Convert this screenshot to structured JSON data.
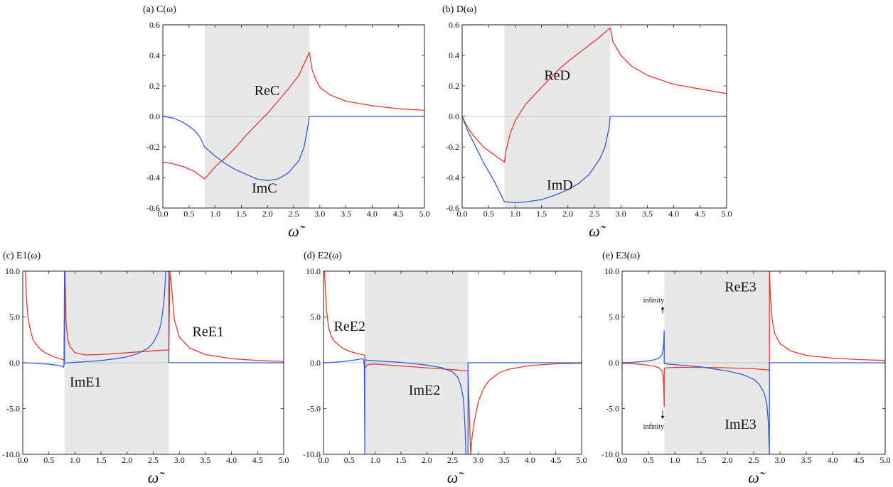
{
  "chart_data": [
    {
      "type": "line",
      "panel": "a",
      "title": "(a) C(ω)",
      "xlabel": "ω̃",
      "xlim": [
        0,
        5
      ],
      "ylim": [
        -0.6,
        0.6
      ],
      "xticks": [
        0,
        0.5,
        1,
        1.5,
        2,
        2.5,
        3,
        3.5,
        4,
        4.5,
        5
      ],
      "xtick_labels": [
        "0.0",
        "0.5",
        "1.0",
        "1.5",
        "2.0",
        "2.5",
        "3.0",
        "3.5",
        "4.0",
        "4.5",
        "5.0"
      ],
      "yticks": [
        -0.6,
        -0.4,
        -0.2,
        0,
        0.2,
        0.4,
        0.6
      ],
      "ytick_labels": [
        "-0.6",
        "-0.4",
        "-0.2",
        "0.0",
        "0.2",
        "0.4",
        "0.6"
      ],
      "shaded_band": [
        0.8,
        2.8
      ],
      "grid": false,
      "colors": {
        "re": "#e8392b",
        "im": "#2e5fe0",
        "band": "#e8e8e8"
      },
      "series": [
        {
          "name": "ReC",
          "color": "re",
          "x": [
            0,
            0.2,
            0.4,
            0.6,
            0.8,
            0.9,
            1,
            1.2,
            1.4,
            1.6,
            1.8,
            2,
            2.2,
            2.4,
            2.6,
            2.8,
            2.85,
            2.9,
            3,
            3.2,
            3.5,
            4,
            4.5,
            5
          ],
          "y": [
            -0.3,
            -0.31,
            -0.33,
            -0.36,
            -0.41,
            -0.37,
            -0.33,
            -0.27,
            -0.2,
            -0.12,
            -0.05,
            0.02,
            0.1,
            0.18,
            0.27,
            0.42,
            0.31,
            0.26,
            0.19,
            0.14,
            0.1,
            0.07,
            0.05,
            0.04
          ]
        },
        {
          "name": "ImC",
          "color": "im",
          "x": [
            0,
            0.2,
            0.4,
            0.6,
            0.7,
            0.8,
            1,
            1.2,
            1.4,
            1.6,
            1.8,
            2,
            2.2,
            2.4,
            2.6,
            2.7,
            2.78,
            2.8,
            3,
            4,
            5
          ],
          "y": [
            0,
            -0.01,
            -0.04,
            -0.09,
            -0.13,
            -0.2,
            -0.26,
            -0.31,
            -0.35,
            -0.38,
            -0.41,
            -0.42,
            -0.41,
            -0.37,
            -0.29,
            -0.2,
            -0.05,
            0,
            0,
            0,
            0
          ]
        }
      ],
      "annotations": [
        {
          "text": "ReC",
          "x": 1.75,
          "y": 0.14
        },
        {
          "text": "ImC",
          "x": 1.7,
          "y": -0.5
        }
      ]
    },
    {
      "type": "line",
      "panel": "b",
      "title": "(b) D(ω)",
      "xlabel": "ω̃",
      "xlim": [
        0,
        5
      ],
      "ylim": [
        -0.6,
        0.6
      ],
      "xticks": [
        0,
        0.5,
        1,
        1.5,
        2,
        2.5,
        3,
        3.5,
        4,
        4.5,
        5
      ],
      "xtick_labels": [
        "0.0",
        "0.5",
        "1.0",
        "1.5",
        "2.0",
        "2.5",
        "3.0",
        "3.5",
        "4.0",
        "4.5",
        "5.0"
      ],
      "yticks": [
        -0.6,
        -0.4,
        -0.2,
        0,
        0.2,
        0.4,
        0.6
      ],
      "ytick_labels": [
        "-0.6",
        "-0.4",
        "-0.2",
        "0.0",
        "0.2",
        "0.4",
        "0.6"
      ],
      "shaded_band": [
        0.8,
        2.8
      ],
      "grid": false,
      "colors": {
        "re": "#e8392b",
        "im": "#2e5fe0",
        "band": "#e8e8e8"
      },
      "series": [
        {
          "name": "ReD",
          "color": "re",
          "x": [
            0,
            0.1,
            0.2,
            0.4,
            0.6,
            0.8,
            0.82,
            0.9,
            1,
            1.2,
            1.5,
            1.8,
            2,
            2.3,
            2.6,
            2.8,
            2.85,
            3,
            3.2,
            3.5,
            4,
            4.5,
            5
          ],
          "y": [
            0,
            -0.07,
            -0.12,
            -0.2,
            -0.25,
            -0.3,
            -0.24,
            -0.12,
            -0.03,
            0.08,
            0.19,
            0.3,
            0.36,
            0.44,
            0.52,
            0.58,
            0.49,
            0.4,
            0.33,
            0.27,
            0.21,
            0.18,
            0.15
          ]
        },
        {
          "name": "ImD",
          "color": "im",
          "x": [
            0,
            0.1,
            0.2,
            0.4,
            0.6,
            0.8,
            0.81,
            1,
            1.2,
            1.5,
            1.8,
            2,
            2.2,
            2.4,
            2.6,
            2.7,
            2.78,
            2.8,
            3,
            4,
            5
          ],
          "y": [
            0,
            -0.09,
            -0.16,
            -0.3,
            -0.42,
            -0.56,
            -0.56,
            -0.565,
            -0.56,
            -0.545,
            -0.51,
            -0.48,
            -0.44,
            -0.38,
            -0.28,
            -0.2,
            -0.07,
            0,
            0,
            0,
            0
          ]
        }
      ],
      "annotations": [
        {
          "text": "ReD",
          "x": 1.55,
          "y": 0.24
        },
        {
          "text": "ImD",
          "x": 1.6,
          "y": -0.48
        }
      ]
    },
    {
      "type": "line",
      "panel": "c",
      "title": "(c) E1(ω)",
      "xlabel": "ω̃",
      "xlim": [
        0,
        5
      ],
      "ylim": [
        -10,
        10
      ],
      "xticks": [
        0,
        0.5,
        1,
        1.5,
        2,
        2.5,
        3,
        3.5,
        4,
        4.5,
        5
      ],
      "xtick_labels": [
        "0.0",
        "0.5",
        "1.0",
        "1.5",
        "2.0",
        "2.5",
        "3.0",
        "3.5",
        "4.0",
        "4.5",
        "5.0"
      ],
      "yticks": [
        -10,
        -5,
        0,
        5,
        10
      ],
      "ytick_labels": [
        "-10.0",
        "-5.0",
        "0.0",
        "5.0",
        "10.0"
      ],
      "shaded_band": [
        0.8,
        2.8
      ],
      "grid": false,
      "colors": {
        "re": "#e8392b",
        "im": "#2e5fe0",
        "band": "#e8e8e8"
      },
      "series": [
        {
          "name": "ReE1",
          "color": "re",
          "x": [
            0.05,
            0.07,
            0.1,
            0.15,
            0.2,
            0.3,
            0.4,
            0.5,
            0.6,
            0.7,
            0.77,
            0.8,
            0.81,
            0.83,
            0.86,
            0.9,
            1,
            1.2,
            1.5,
            2,
            2.5,
            2.8,
            2.82,
            2.85,
            2.9,
            3,
            3.2,
            3.5,
            4,
            4.5,
            5
          ],
          "y": [
            10,
            7.2,
            5,
            3.4,
            2.5,
            1.7,
            1.2,
            0.9,
            0.65,
            0.45,
            0.35,
            0.3,
            10,
            4.5,
            2.6,
            1.8,
            1.1,
            0.85,
            0.9,
            1.1,
            1.3,
            1.4,
            10,
            8.5,
            4.8,
            2.8,
            1.6,
            0.9,
            0.45,
            0.25,
            0.15
          ]
        },
        {
          "name": "ImE1",
          "color": "im",
          "x": [
            0,
            0.2,
            0.4,
            0.6,
            0.7,
            0.76,
            0.78,
            0.79,
            0.8,
            0.8,
            0.9,
            1,
            1.2,
            1.5,
            1.8,
            2,
            2.2,
            2.4,
            2.5,
            2.6,
            2.65,
            2.7,
            2.72,
            2.74,
            2.8,
            2.8,
            3,
            4,
            5
          ],
          "y": [
            0,
            -0.05,
            -0.12,
            -0.22,
            -0.3,
            -0.4,
            -0.5,
            -0.3,
            10,
            -0.05,
            0,
            0.05,
            0.12,
            0.25,
            0.45,
            0.65,
            1,
            1.6,
            2.2,
            3.3,
            4.3,
            6.4,
            7.8,
            10,
            10,
            0,
            0,
            0,
            0
          ]
        }
      ],
      "annotations": [
        {
          "text": "ReE1",
          "x": 3.25,
          "y": 2.9
        },
        {
          "text": "ImE1",
          "x": 0.9,
          "y": -2.6
        }
      ]
    },
    {
      "type": "line",
      "panel": "d",
      "title": "(d) E2(ω)",
      "xlabel": "ω̃",
      "xlim": [
        0,
        5
      ],
      "ylim": [
        -10,
        10
      ],
      "xticks": [
        0,
        0.5,
        1,
        1.5,
        2,
        2.5,
        3,
        3.5,
        4,
        4.5,
        5
      ],
      "xtick_labels": [
        "0.0",
        "0.5",
        "1.0",
        "1.5",
        "2.0",
        "2.5",
        "3.0",
        "3.5",
        "4.0",
        "4.5",
        "5.0"
      ],
      "yticks": [
        -10,
        -5,
        0,
        5,
        10
      ],
      "ytick_labels": [
        "-10.0",
        "-5.0",
        "0.0",
        "5.0",
        "10.0"
      ],
      "shaded_band": [
        0.8,
        2.8
      ],
      "grid": false,
      "colors": {
        "re": "#e8392b",
        "im": "#2e5fe0",
        "band": "#e8e8e8"
      },
      "series": [
        {
          "name": "ReE2",
          "color": "re",
          "x": [
            0.02,
            0.04,
            0.06,
            0.1,
            0.15,
            0.2,
            0.3,
            0.4,
            0.5,
            0.6,
            0.7,
            0.78,
            0.8,
            0.8,
            0.85,
            1,
            1.5,
            2,
            2.5,
            2.8,
            2.8,
            2.85,
            2.88,
            2.92,
            3,
            3.1,
            3.2,
            3.4,
            3.6,
            4,
            4.5,
            5
          ],
          "y": [
            10,
            7.5,
            5.6,
            3.8,
            2.9,
            2.4,
            1.9,
            1.5,
            1.25,
            1.1,
            0.95,
            0.85,
            0.8,
            -0.6,
            -0.2,
            -0.15,
            -0.35,
            -0.55,
            -0.75,
            -0.9,
            -0.9,
            -10,
            -8,
            -6.5,
            -4.2,
            -2.8,
            -2,
            -1.1,
            -0.7,
            -0.3,
            -0.12,
            -0.05
          ]
        },
        {
          "name": "ImE2",
          "color": "im",
          "x": [
            0,
            0.2,
            0.4,
            0.6,
            0.7,
            0.76,
            0.78,
            0.79,
            0.8,
            0.8,
            0.81,
            0.85,
            1,
            1.5,
            2,
            2.3,
            2.5,
            2.6,
            2.65,
            2.7,
            2.72,
            2.74,
            2.76,
            2.8,
            2.8,
            3,
            4,
            5
          ],
          "y": [
            0,
            0.05,
            0.15,
            0.3,
            0.4,
            0.45,
            0.2,
            -0.3,
            -10,
            0.35,
            0.3,
            0.28,
            0.22,
            0.05,
            -0.25,
            -0.55,
            -1,
            -1.6,
            -2.3,
            -3.6,
            -4.8,
            -6.8,
            -10,
            -10,
            0,
            0,
            0,
            0
          ]
        }
      ],
      "annotations": [
        {
          "text": "ReE2",
          "x": 0.2,
          "y": 3.5
        },
        {
          "text": "ImE2",
          "x": 1.65,
          "y": -3.5
        }
      ]
    },
    {
      "type": "line",
      "panel": "e",
      "title": "(e) E3(ω)",
      "xlabel": "ω̃",
      "xlim": [
        0,
        5
      ],
      "ylim": [
        -10,
        10
      ],
      "xticks": [
        0,
        0.5,
        1,
        1.5,
        2,
        2.5,
        3,
        3.5,
        4,
        4.5,
        5
      ],
      "xtick_labels": [
        "0.0",
        "0.5",
        "1.0",
        "1.5",
        "2.0",
        "2.5",
        "3.0",
        "3.5",
        "4.0",
        "4.5",
        "5.0"
      ],
      "yticks": [
        -10,
        -5,
        0,
        5,
        10
      ],
      "ytick_labels": [
        "-10.0",
        "-5.0",
        "0.0",
        "5.0",
        "10.0"
      ],
      "shaded_band": [
        0.8,
        2.8
      ],
      "grid": false,
      "colors": {
        "re": "#e8392b",
        "im": "#2e5fe0",
        "band": "#e8e8e8"
      },
      "series": [
        {
          "name": "ReE3",
          "color": "re",
          "x": [
            0,
            0.2,
            0.4,
            0.6,
            0.7,
            0.76,
            0.78,
            0.79,
            0.8,
            0.8,
            0.81,
            0.85,
            1,
            1.5,
            2,
            2.5,
            2.8,
            2.8,
            2.82,
            2.85,
            2.9,
            3,
            3.2,
            3.5,
            4,
            4.5,
            5
          ],
          "y": [
            -0.05,
            -0.1,
            -0.2,
            -0.35,
            -0.55,
            -0.9,
            -1.5,
            -2.5,
            -4.8,
            -0.8,
            -0.6,
            -0.55,
            -0.5,
            -0.5,
            -0.55,
            -0.65,
            -0.8,
            10,
            7.2,
            4.8,
            3.2,
            2.1,
            1.3,
            0.8,
            0.5,
            0.35,
            0.25
          ]
        },
        {
          "name": "ImE3",
          "color": "im",
          "x": [
            0,
            0.2,
            0.4,
            0.6,
            0.7,
            0.76,
            0.78,
            0.79,
            0.8,
            0.8,
            0.81,
            1,
            1.5,
            2,
            2.3,
            2.5,
            2.6,
            2.7,
            2.75,
            2.78,
            2.8,
            2.8,
            3,
            4,
            5
          ],
          "y": [
            0,
            0.05,
            0.15,
            0.3,
            0.5,
            0.9,
            1.5,
            2.2,
            3.5,
            -0.05,
            -0.1,
            -0.2,
            -0.45,
            -0.9,
            -1.3,
            -1.8,
            -2.3,
            -3.3,
            -4.5,
            -6.5,
            -10,
            0,
            0,
            0,
            0
          ]
        }
      ],
      "annotations": [
        {
          "text": "ReE3",
          "x": 1.95,
          "y": 7.8
        },
        {
          "text": "ImE3",
          "x": 1.95,
          "y": -7.2
        },
        {
          "text": "infinity",
          "x": 0.6,
          "y": 6.6,
          "arrow": "up"
        },
        {
          "text": "infinity",
          "x": 0.6,
          "y": -7.2,
          "arrow": "down"
        }
      ]
    }
  ]
}
